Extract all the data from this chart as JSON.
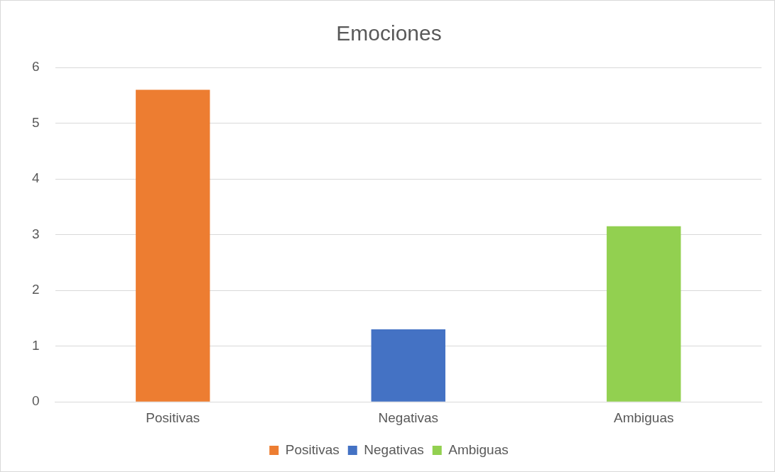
{
  "chart_data": {
    "type": "bar",
    "title": "Emociones",
    "categories": [
      "Positivas",
      "Negativas",
      "Ambiguas"
    ],
    "series": [
      {
        "name": "Positivas",
        "color": "#ed7d31",
        "values": [
          5.6,
          null,
          null
        ]
      },
      {
        "name": "Negativas",
        "color": "#4472c4",
        "values": [
          null,
          1.3,
          null
        ]
      },
      {
        "name": "Ambiguas",
        "color": "#92d050",
        "values": [
          null,
          null,
          3.15
        ]
      }
    ],
    "ylim": [
      0,
      6
    ],
    "yticks": [
      0,
      1,
      2,
      3,
      4,
      5,
      6
    ],
    "grid": "y",
    "legend": "bottom"
  }
}
